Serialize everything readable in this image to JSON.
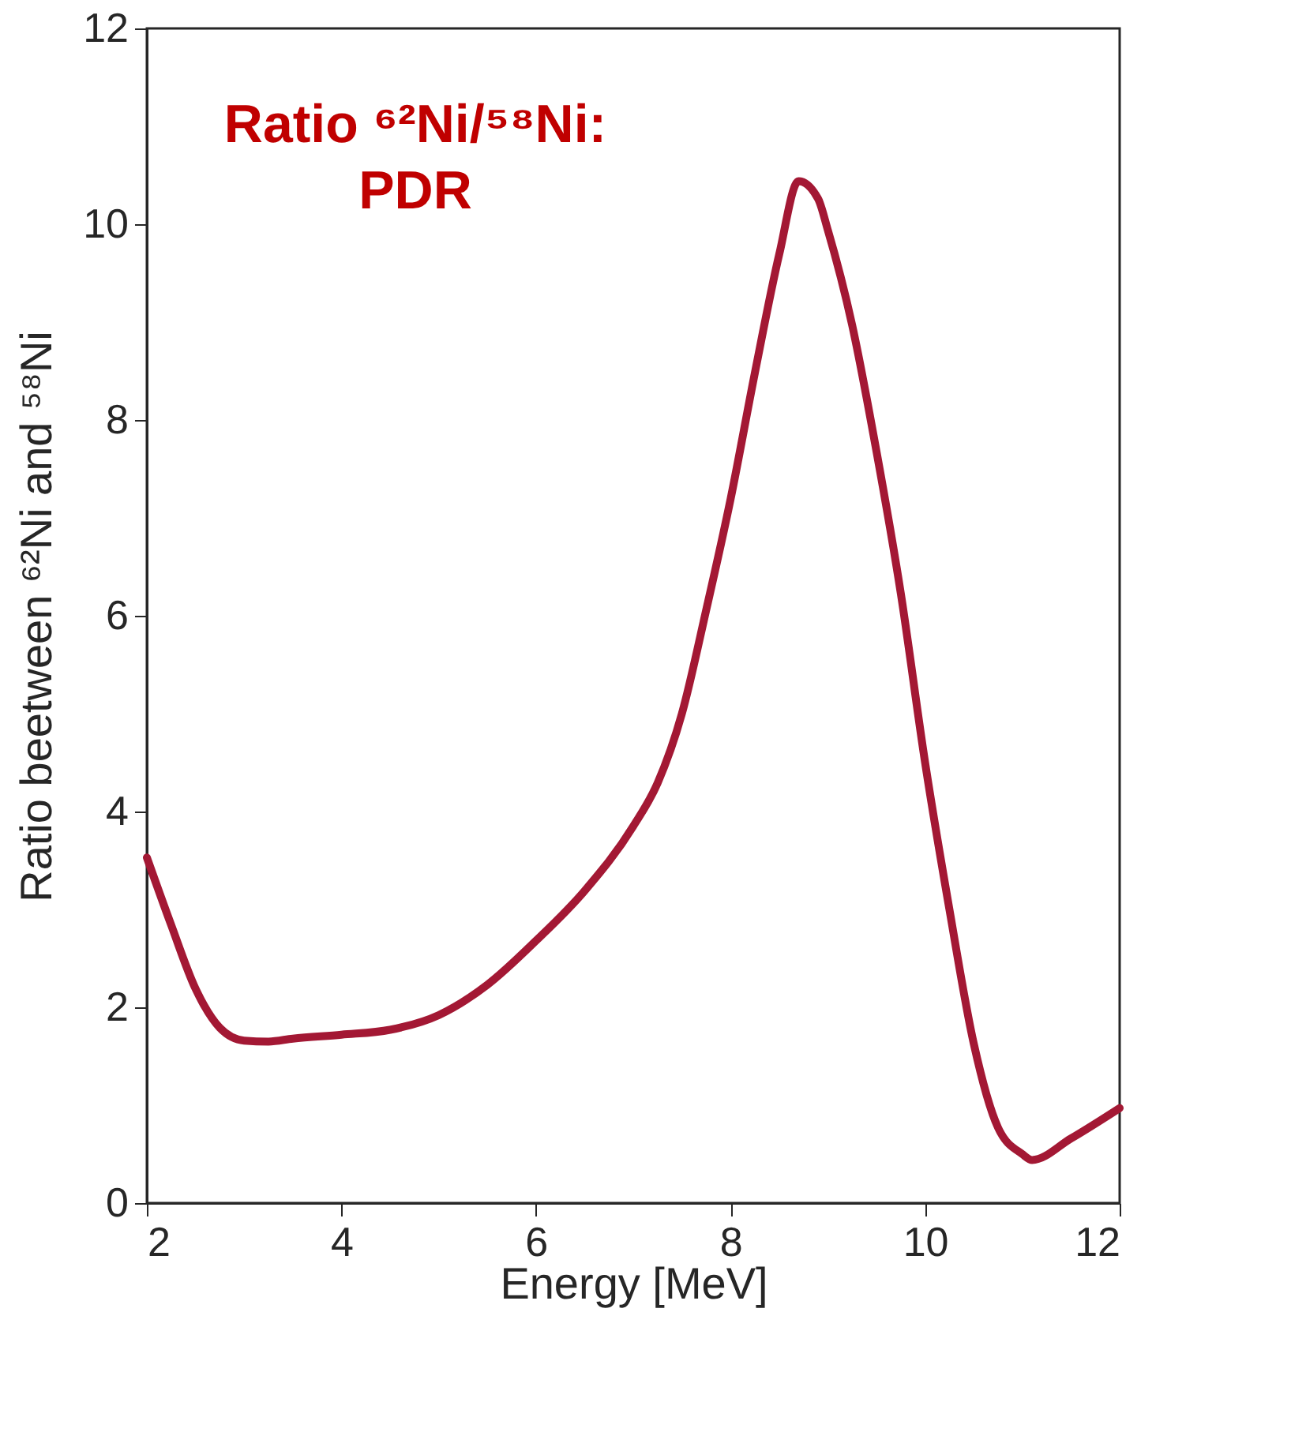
{
  "chart_data": {
    "type": "line",
    "xlabel": "Energy [MeV]",
    "ylabel": "Ratio beetween ⁶²Ni and ⁵⁸Ni",
    "annotations": [
      "Ratio ⁶²Ni/⁵⁸Ni:",
      "PDR"
    ],
    "x": [
      2,
      2.25,
      2.5,
      2.75,
      3,
      3.25,
      3.5,
      4,
      4.5,
      5,
      5.5,
      6,
      6.5,
      7,
      7.25,
      7.5,
      7.75,
      8,
      8.25,
      8.5,
      8.7,
      8.9,
      9,
      9.25,
      9.5,
      9.75,
      10,
      10.25,
      10.5,
      10.75,
      11,
      11.1,
      11.5,
      12
    ],
    "series": [
      {
        "color": "#a31834",
        "values": [
          3.53,
          2.84,
          2.19,
          1.79,
          1.66,
          1.65,
          1.68,
          1.72,
          1.77,
          1.92,
          2.23,
          2.68,
          3.19,
          3.85,
          4.29,
          5.0,
          6.06,
          7.19,
          8.48,
          9.69,
          10.44,
          10.26,
          9.94,
          8.97,
          7.68,
          6.23,
          4.5,
          3.0,
          1.63,
          0.77,
          0.5,
          0.44,
          0.66,
          0.97
        ]
      }
    ],
    "xlim": [
      2,
      12
    ],
    "xticks": [
      2,
      4,
      6,
      8,
      10,
      12
    ],
    "ylim": [
      0,
      12
    ],
    "yticks": [
      0,
      2,
      4,
      6,
      8,
      10,
      12
    ],
    "grid": false,
    "marker": "none",
    "line_style": "solid"
  }
}
